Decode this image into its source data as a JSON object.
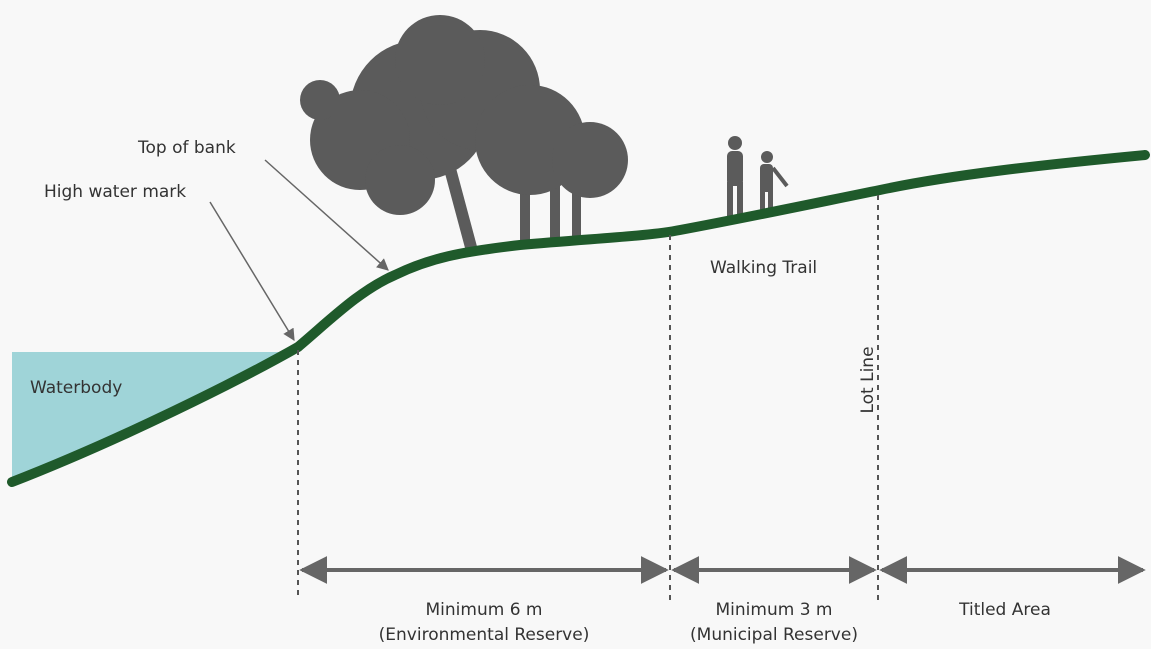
{
  "labels": {
    "top_of_bank": "Top of bank",
    "high_water_mark": "High water mark",
    "waterbody": "Waterbody",
    "walking_trail": "Walking Trail",
    "lot_line": "Lot Line"
  },
  "dimensions": [
    {
      "label": "Minimum 6 m",
      "sublabel": "(Environmental Reserve)"
    },
    {
      "label": "Minimum 3 m",
      "sublabel": "(Municipal Reserve)"
    },
    {
      "label": "Titled Area"
    }
  ]
}
